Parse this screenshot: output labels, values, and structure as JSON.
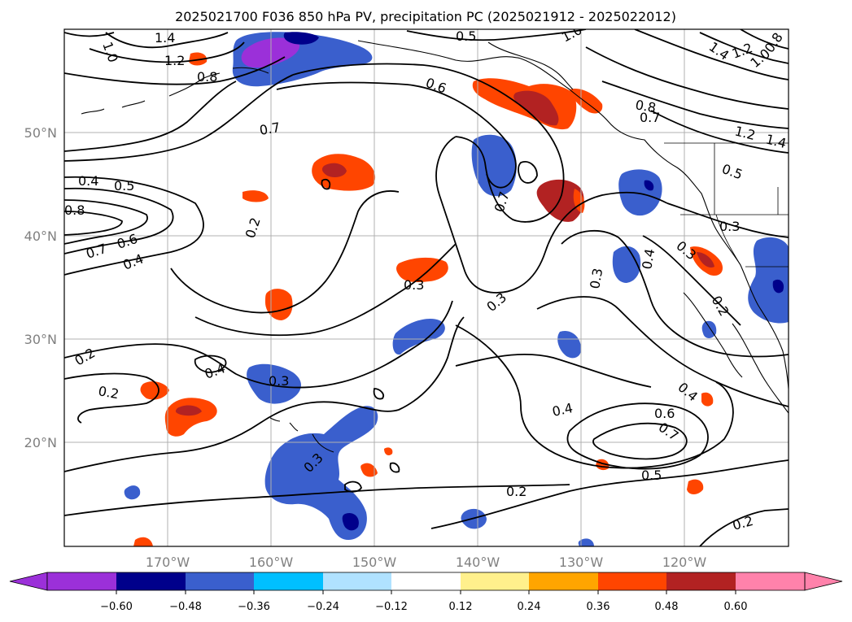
{
  "title": "2025021700 F036 850 hPa PV, precipitation PC (2025021912 - 2025022012)",
  "map": {
    "lon_ticks": [
      "170°W",
      "160°W",
      "150°W",
      "140°W",
      "130°W",
      "120°W"
    ],
    "lat_ticks": [
      "50°N",
      "40°N",
      "30°N",
      "20°N"
    ],
    "lon_range": [
      -180,
      -110
    ],
    "lat_range": [
      10,
      60
    ],
    "gridlines": true
  },
  "pv_contours": {
    "variable": "850 hPa PV",
    "labels": [
      "0.4",
      "0.5",
      "0.8",
      "0.7",
      "0.6",
      "0.4",
      "1.4",
      "1.2",
      "0.8",
      "1.0",
      "0.5",
      "1.0",
      "0.6",
      "0.8",
      "0.7",
      "1.2",
      "1.4",
      "1.4",
      "1.2",
      "1.0",
      "0.8",
      "0.7",
      "0.2",
      "0.3",
      "0.4",
      "0.5",
      "0.3",
      "0.7",
      "0.3",
      "0.2",
      "0.4",
      "0.3",
      "0.2",
      "0.3",
      "0.4",
      "0.6",
      "0.7",
      "0.5",
      "0.2",
      "0.2",
      "0.4",
      "0.3",
      "0.3",
      "0.2"
    ]
  },
  "colorbar": {
    "variable": "precipitation PC",
    "tick_labels": [
      "−0.60",
      "−0.48",
      "−0.36",
      "−0.24",
      "−0.12",
      "0.12",
      "0.24",
      "0.36",
      "0.48",
      "0.60"
    ],
    "colors": [
      "#9b30d9",
      "#00008b",
      "#3a5fcd",
      "#00bfff",
      "#b0e2ff",
      "#ffffff",
      "#fff08c",
      "#ffa500",
      "#ff4500",
      "#b22222",
      "#ff82ab"
    ]
  }
}
